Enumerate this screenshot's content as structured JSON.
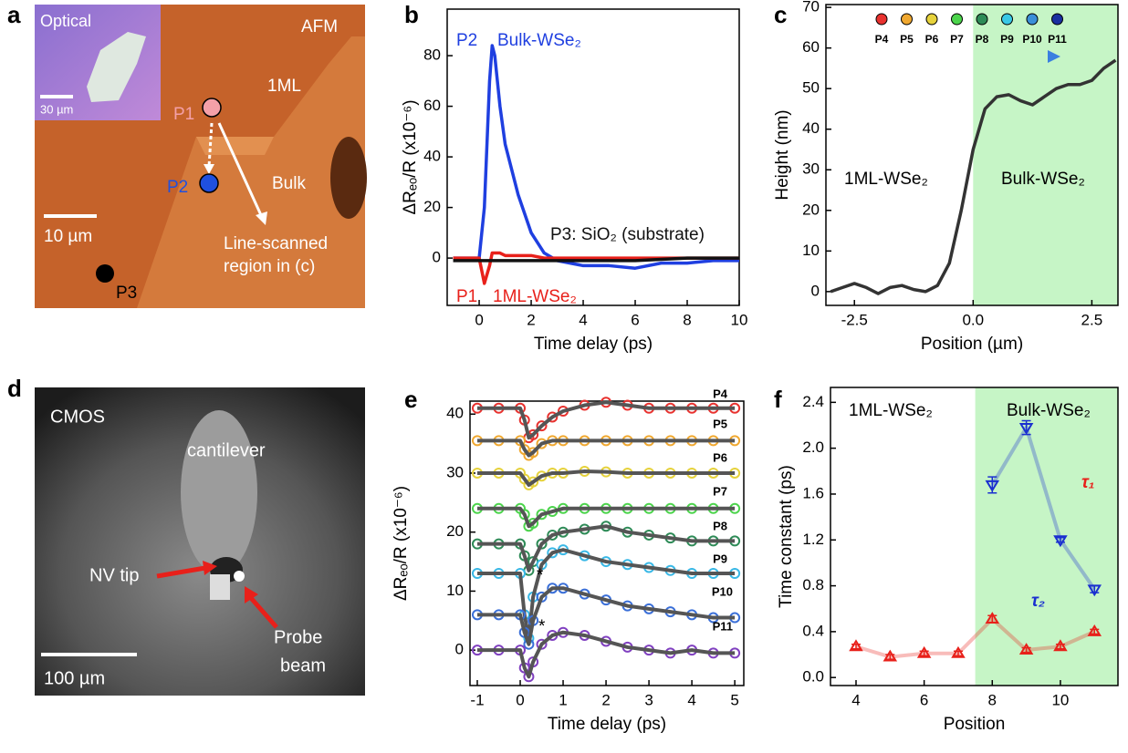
{
  "images": [
    {
      "panel": "a",
      "texts": [
        "Optical",
        "30 µm",
        "AFM",
        "1ML",
        "P1",
        "P2",
        "Bulk",
        "10 µm",
        "Line-scanned",
        "region in (c)",
        "P3"
      ]
    },
    {
      "panel": "d",
      "texts": [
        "CMOS",
        "cantilever",
        "NV tip",
        "Probe",
        "beam",
        "100 µm"
      ]
    }
  ],
  "chart_data": [
    {
      "type": "line",
      "panel": "b",
      "xlabel": "Time delay (ps)",
      "ylabel": "ΔRₑₒ/R (x10⁻⁶)",
      "xlim": [
        -1.23,
        10
      ],
      "ylim": [
        -18.7,
        98.4
      ],
      "xticks": [
        0,
        2,
        4,
        6,
        8,
        10
      ],
      "yticks": [
        0,
        20,
        40,
        60,
        80
      ],
      "x": [
        -1,
        -0.5,
        0,
        0.2,
        0.4,
        0.5,
        0.6,
        0.8,
        1,
        1.5,
        2,
        2.5,
        3,
        4,
        5,
        6,
        7,
        8,
        9,
        10
      ],
      "series": [
        {
          "name": "P2",
          "color": "#1f3fe0",
          "values": [
            0,
            0,
            0,
            20,
            70,
            84,
            80,
            60,
            45,
            25,
            10,
            2,
            -1,
            -3,
            -3,
            -4,
            -2,
            -2,
            -1,
            -1
          ]
        },
        {
          "name": "P1",
          "color": "#e8201a",
          "values": [
            0,
            0,
            0,
            -10,
            -3,
            2,
            2,
            2,
            1,
            1,
            1,
            0,
            0,
            0,
            0,
            0,
            0,
            0,
            0,
            0
          ]
        },
        {
          "name": "P3: SiO₂ (substrate)",
          "color": "#111111",
          "values": [
            -1,
            -1,
            -1,
            -1,
            -1,
            -1,
            -1,
            -1,
            -1,
            -1,
            -1,
            -1,
            -1,
            -1,
            -1,
            -1,
            -0.5,
            0,
            0,
            0
          ]
        }
      ],
      "annotations": [
        "Bulk-WSe₂",
        "1ML-WSe₂"
      ]
    },
    {
      "type": "line",
      "panel": "c",
      "xlabel": "Position (µm)",
      "ylabel": "Height (nm)",
      "xlim": [
        -3.1,
        3.05
      ],
      "ylim": [
        -3.4,
        70.7
      ],
      "xticks": [
        -2.5,
        {
          "value": 0,
          "label": "0.0"
        },
        2.5
      ],
      "yticks": [
        0,
        10,
        20,
        30,
        40,
        50,
        60,
        70
      ],
      "shade": [
        0,
        3.05
      ],
      "shade_color": "#c6f5c6",
      "x": [
        -3,
        -2.75,
        -2.5,
        -2.25,
        -2,
        -1.75,
        -1.5,
        -1.25,
        -1,
        -0.75,
        -0.5,
        -0.25,
        0,
        0.25,
        0.5,
        0.75,
        1,
        1.25,
        1.5,
        1.75,
        2,
        2.25,
        2.5,
        2.75,
        3
      ],
      "series": [
        {
          "color": "#333333",
          "values": [
            0,
            1,
            2,
            1,
            -0.5,
            1,
            1.5,
            0.5,
            0,
            1.5,
            7,
            20,
            35,
            45,
            48,
            48.5,
            47,
            46,
            48,
            50,
            51,
            51,
            52,
            55,
            57
          ]
        }
      ],
      "position_markers": [
        {
          "name": "P4",
          "color": "#e8322f"
        },
        {
          "name": "P5",
          "color": "#f0a830"
        },
        {
          "name": "P6",
          "color": "#e6d23c"
        },
        {
          "name": "P7",
          "color": "#4cd44c"
        },
        {
          "name": "P8",
          "color": "#2e8b57"
        },
        {
          "name": "P9",
          "color": "#39c8e6"
        },
        {
          "name": "P10",
          "color": "#3a8fd8"
        },
        {
          "name": "P11",
          "color": "#1a2fa0"
        }
      ],
      "annotations": [
        "1ML-WSe₂",
        "Bulk-WSe₂"
      ]
    },
    {
      "type": "line",
      "panel": "e",
      "markers": true,
      "fit_color": "#555555",
      "xlabel": "Time delay (ps)",
      "ylabel": "ΔRₑₒ/R (x10⁻⁶)",
      "xlim": [
        -1.17,
        5.21
      ],
      "ylim": [
        -6,
        42.2
      ],
      "xticks": [
        -1,
        0,
        1,
        2,
        3,
        4,
        5
      ],
      "yticks": [
        0,
        10,
        20,
        30,
        40
      ],
      "x": [
        -1,
        -0.5,
        0,
        0.1,
        0.2,
        0.3,
        0.5,
        0.75,
        1,
        1.5,
        2,
        2.5,
        3,
        3.5,
        4,
        4.5,
        5
      ],
      "series": [
        {
          "name": "P4",
          "color": "#e8322f",
          "values": [
            41,
            41,
            41,
            39,
            36,
            36.5,
            38,
            39.5,
            40.5,
            41.5,
            42,
            41.5,
            41,
            41,
            41,
            41,
            41
          ]
        },
        {
          "name": "P5",
          "color": "#f0a830",
          "values": [
            35.5,
            35.5,
            35.5,
            34,
            33,
            33.5,
            35,
            35.5,
            35.5,
            35.5,
            35.5,
            35.5,
            35.5,
            35.5,
            35.5,
            35.5,
            35.5
          ]
        },
        {
          "name": "P6",
          "color": "#e6d23c",
          "values": [
            30,
            30,
            30,
            29,
            28,
            28.5,
            29.5,
            30,
            30,
            30.3,
            30.2,
            30,
            30,
            30,
            30,
            30,
            30
          ]
        },
        {
          "name": "P7",
          "color": "#4cd44c",
          "values": [
            24,
            24,
            24,
            23,
            21,
            21.5,
            23,
            23.5,
            24,
            24,
            24,
            24,
            24,
            24,
            24,
            24,
            24
          ]
        },
        {
          "name": "P8",
          "color": "#2e8b57",
          "values": [
            18,
            18,
            18,
            16,
            13.5,
            15,
            18,
            19.5,
            20,
            20.5,
            21,
            20,
            19.5,
            19,
            18.5,
            18.5,
            18.5
          ]
        },
        {
          "name": "P9",
          "color": "#39b8e6",
          "values": [
            13,
            13,
            13,
            6,
            2,
            9,
            14.5,
            16.5,
            17,
            16,
            15,
            14.5,
            14,
            13.5,
            13,
            13,
            13
          ]
        },
        {
          "name": "P10",
          "color": "#3a6fd8",
          "values": [
            6,
            6,
            6,
            3,
            1,
            5,
            9,
            10.5,
            10.5,
            9.5,
            8.5,
            7.5,
            7,
            6.5,
            6,
            5.5,
            5.5
          ]
        },
        {
          "name": "P11",
          "color": "#8040c0",
          "values": [
            0,
            0,
            0,
            -3,
            -4.5,
            -2,
            1,
            2.5,
            3,
            2.5,
            1.5,
            0.5,
            0,
            -0.5,
            0,
            -0.5,
            -0.5
          ]
        }
      ],
      "annotations": [
        "*",
        "*"
      ]
    },
    {
      "type": "scatter",
      "panel": "f",
      "xlabel": "Position",
      "ylabel": "Time constant (ps)",
      "xlim": [
        3.25,
        11.69
      ],
      "ylim": [
        -0.07,
        2.53
      ],
      "xticks": [
        4,
        6,
        8,
        10
      ],
      "yticks": [
        {
          "value": 0,
          "label": "0.0"
        },
        0.4,
        0.8,
        1.2,
        1.6,
        {
          "value": 2,
          "label": "2.0"
        },
        2.4
      ],
      "shade": [
        7.5,
        11.69
      ],
      "shade_color": "#c6f5c6",
      "series": [
        {
          "name": "τ₁",
          "color": "#e8201a",
          "marker": "triangle-up",
          "x": [
            4,
            5,
            6,
            7,
            8,
            9,
            10,
            11
          ],
          "values": [
            0.27,
            0.18,
            0.21,
            0.21,
            0.51,
            0.24,
            0.27,
            0.4
          ],
          "errors": [
            0.02,
            0.02,
            0.02,
            0.02,
            0.03,
            0.02,
            0.02,
            0.02
          ]
        },
        {
          "name": "τ₂",
          "color": "#1a2fd0",
          "marker": "triangle-down",
          "x": [
            8,
            9,
            10,
            11
          ],
          "values": [
            1.68,
            2.18,
            1.2,
            0.77
          ],
          "errors": [
            0.07,
            0.06,
            0.02,
            0.03
          ]
        }
      ],
      "annotations": [
        "1ML-WSe₂",
        "Bulk-WSe₂"
      ]
    }
  ]
}
